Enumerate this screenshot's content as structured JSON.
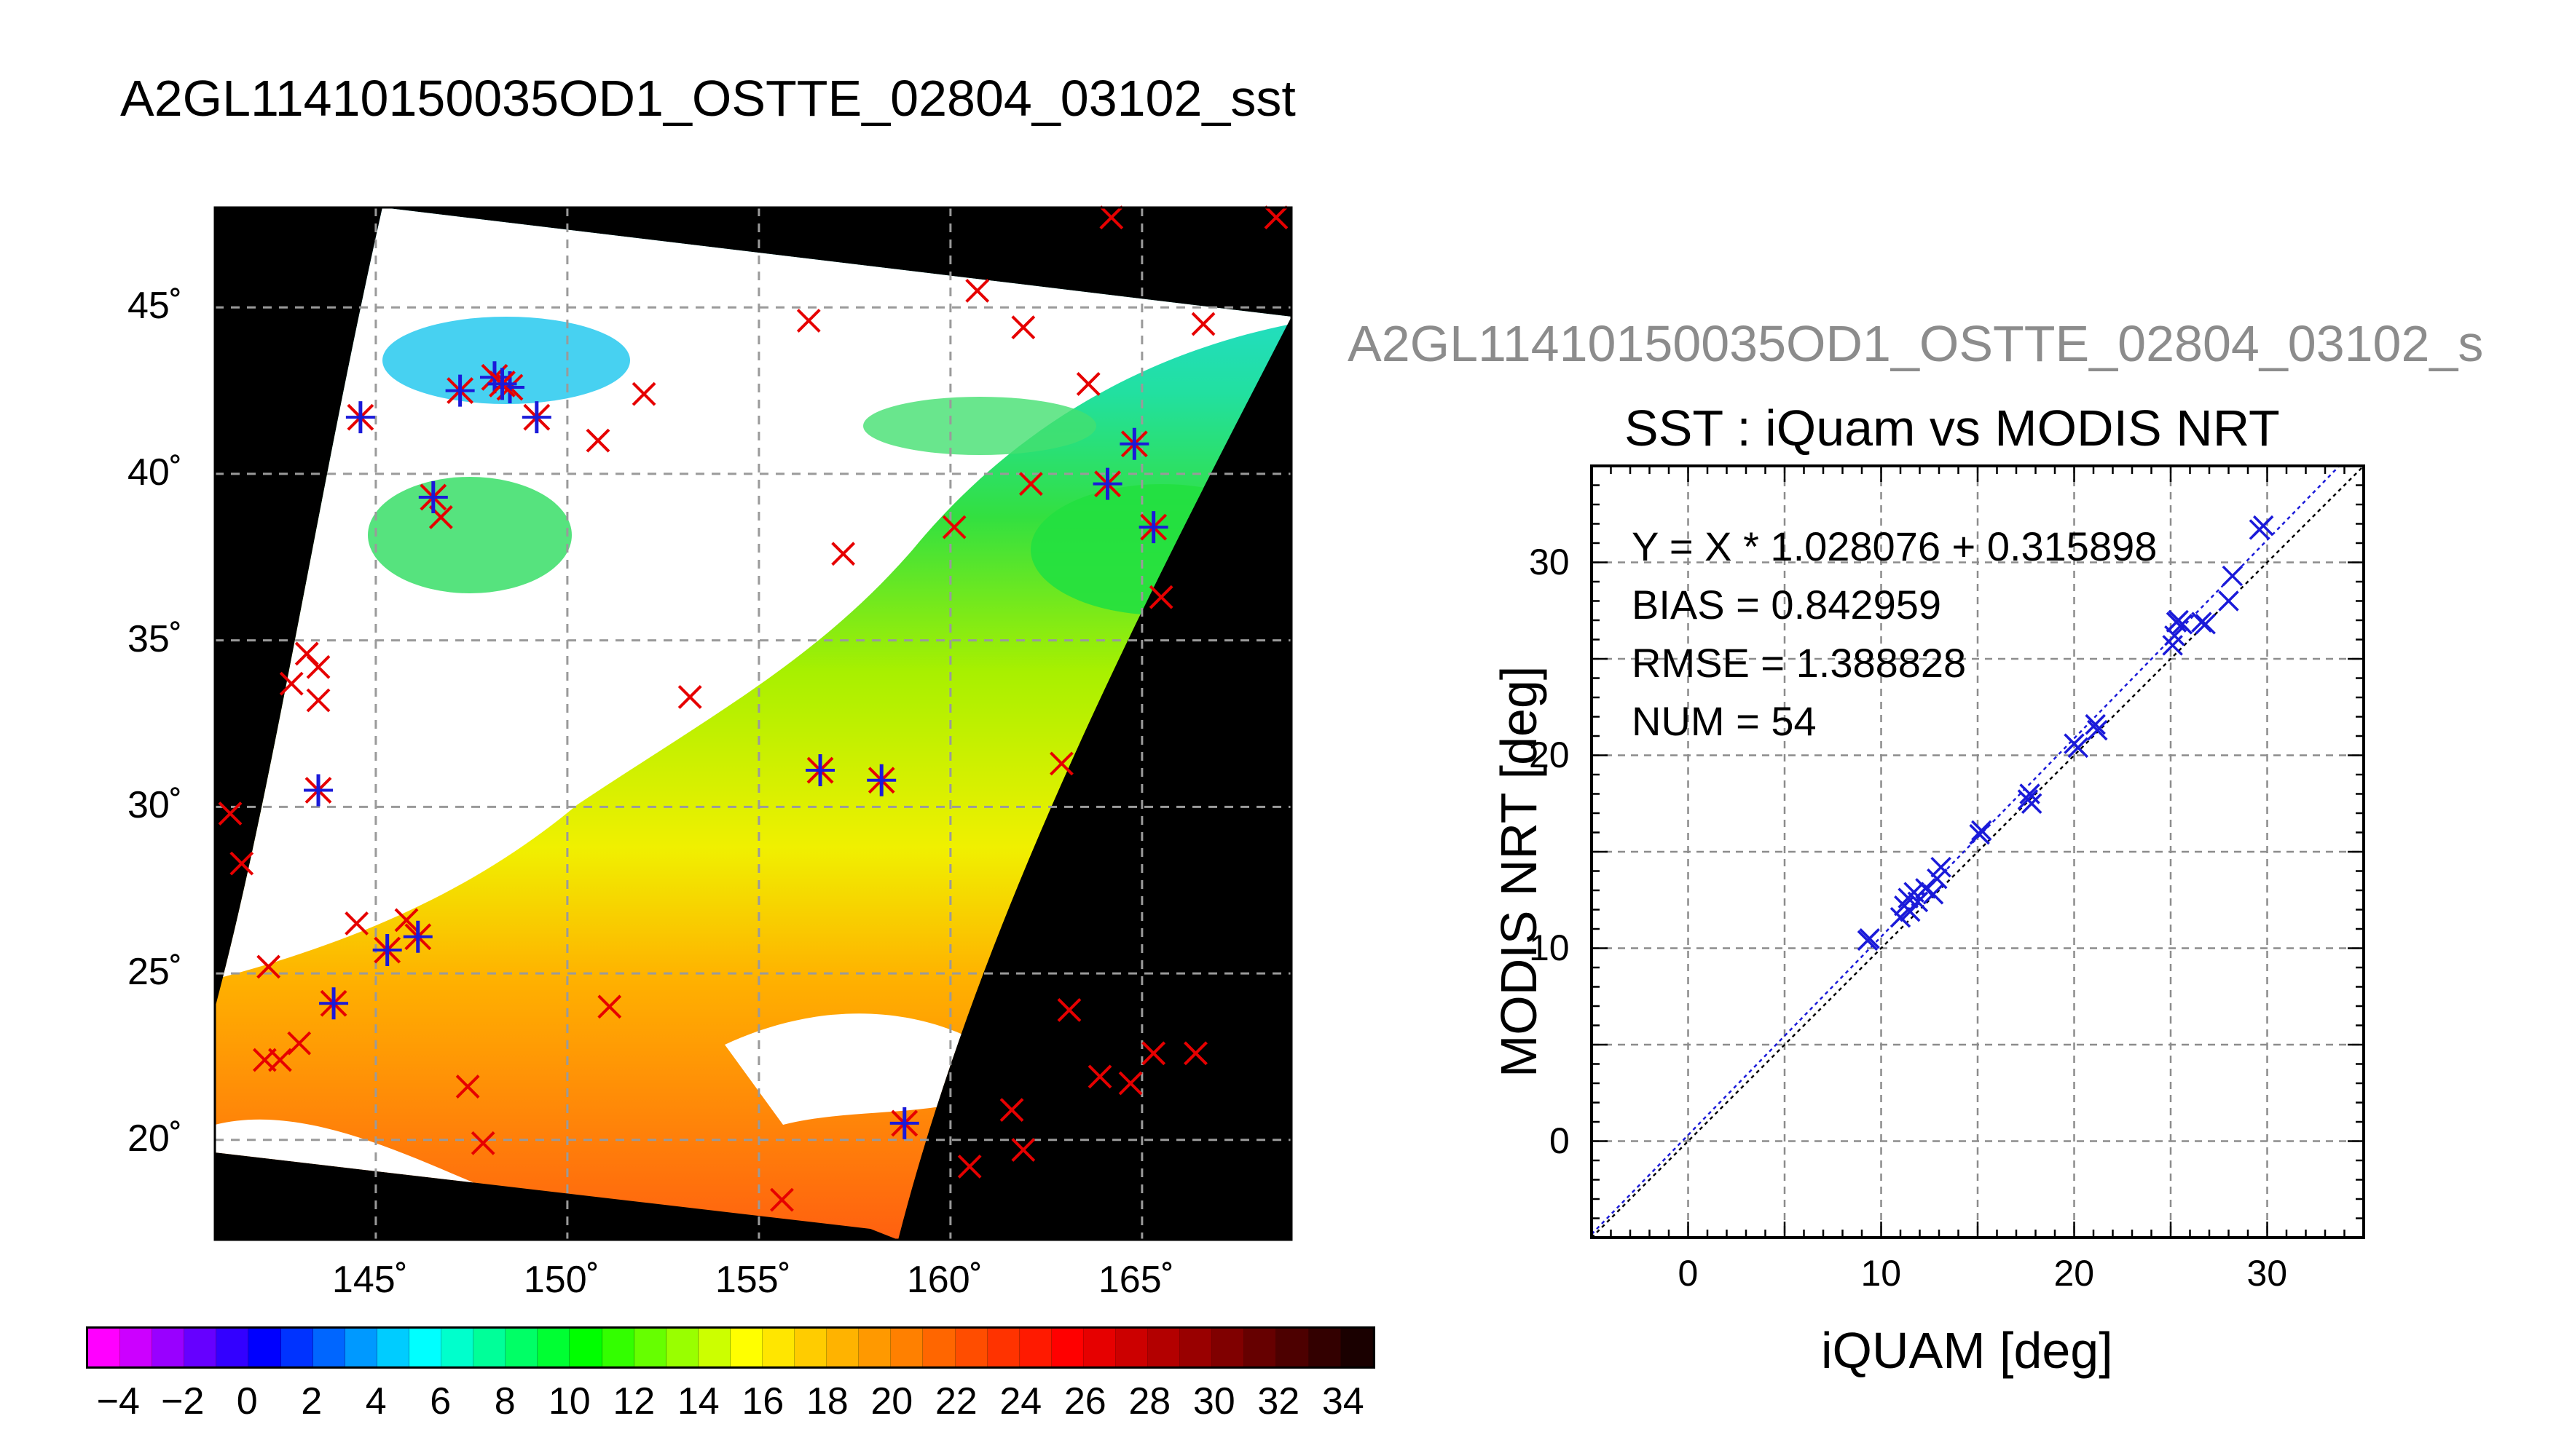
{
  "figure_title": "A2GL11410150035OD1_OSTTE_02804_03102_sst",
  "map": {
    "lon_ticks": [
      "145˚",
      "150˚",
      "155˚",
      "160˚",
      "165˚"
    ],
    "lon_tick_values": [
      145,
      150,
      155,
      160,
      165
    ],
    "lat_ticks": [
      "20˚",
      "25˚",
      "30˚",
      "35˚",
      "40˚",
      "45˚"
    ],
    "lat_tick_values": [
      20,
      25,
      30,
      35,
      40,
      45
    ],
    "lon_range": [
      140.8,
      168.9
    ],
    "lat_range": [
      17.0,
      48.0
    ],
    "land_color": "#000000",
    "cloud_color": "#ffffff",
    "iquam_marker_color": "#e60000",
    "match_marker_color": "#1a1ad9",
    "iquam_points": [
      [
        141.2,
        29.8
      ],
      [
        141.5,
        28.3
      ],
      [
        142.2,
        25.2
      ],
      [
        142.1,
        22.4
      ],
      [
        142.5,
        22.4
      ],
      [
        143.0,
        22.9
      ],
      [
        142.8,
        33.7
      ],
      [
        143.2,
        34.6
      ],
      [
        143.5,
        34.2
      ],
      [
        143.5,
        33.2
      ],
      [
        144.5,
        26.5
      ],
      [
        145.8,
        26.6
      ],
      [
        147.4,
        21.6
      ],
      [
        147.8,
        19.9
      ],
      [
        151.1,
        24.0
      ],
      [
        155.6,
        18.2
      ],
      [
        153.2,
        33.3
      ],
      [
        157.2,
        37.6
      ],
      [
        150.8,
        41.0
      ],
      [
        152.0,
        42.4
      ],
      [
        156.3,
        44.6
      ],
      [
        160.1,
        38.4
      ],
      [
        160.7,
        45.5
      ],
      [
        161.9,
        44.4
      ],
      [
        162.1,
        39.7
      ],
      [
        163.6,
        42.7
      ],
      [
        165.5,
        36.3
      ],
      [
        166.6,
        44.5
      ],
      [
        164.2,
        47.7
      ],
      [
        168.5,
        47.7
      ],
      [
        162.9,
        31.3
      ],
      [
        163.1,
        23.9
      ],
      [
        161.6,
        20.9
      ],
      [
        160.5,
        19.2
      ],
      [
        161.9,
        19.7
      ],
      [
        163.9,
        21.9
      ],
      [
        164.7,
        21.7
      ],
      [
        165.3,
        22.6
      ],
      [
        166.4,
        22.6
      ],
      [
        146.7,
        38.7
      ]
    ],
    "match_points": [
      [
        144.6,
        41.7
      ],
      [
        146.5,
        39.3
      ],
      [
        147.2,
        42.5
      ],
      [
        148.1,
        42.9
      ],
      [
        148.5,
        42.6
      ],
      [
        148.3,
        42.7
      ],
      [
        149.2,
        41.7
      ],
      [
        143.5,
        30.5
      ],
      [
        143.9,
        24.1
      ],
      [
        145.3,
        25.7
      ],
      [
        146.1,
        26.1
      ],
      [
        156.6,
        31.1
      ],
      [
        158.2,
        30.8
      ],
      [
        158.8,
        20.5
      ],
      [
        164.1,
        39.7
      ],
      [
        164.8,
        40.9
      ],
      [
        165.3,
        38.4
      ]
    ]
  },
  "colorbar": {
    "labels": [
      "−4",
      "−2",
      "0",
      "2",
      "4",
      "6",
      "8",
      "10",
      "12",
      "14",
      "16",
      "18",
      "20",
      "22",
      "24",
      "26",
      "28",
      "30",
      "32",
      "34"
    ],
    "label_values": [
      -4,
      -2,
      0,
      2,
      4,
      6,
      8,
      10,
      12,
      14,
      16,
      18,
      20,
      22,
      24,
      26,
      28,
      30,
      32,
      34
    ],
    "range": [
      -5,
      35
    ],
    "colors": [
      "#ff00ff",
      "#cc00ff",
      "#9900ff",
      "#6600ff",
      "#3300ff",
      "#0000ff",
      "#0033ff",
      "#0066ff",
      "#0099ff",
      "#00ccff",
      "#00ffff",
      "#00ffcc",
      "#00ff99",
      "#00ff66",
      "#00ff33",
      "#00ff00",
      "#33ff00",
      "#66ff00",
      "#99ff00",
      "#ccff00",
      "#ffff00",
      "#ffe600",
      "#ffcc00",
      "#ffb300",
      "#ff9900",
      "#ff8000",
      "#ff6600",
      "#ff4d00",
      "#ff3300",
      "#ff1a00",
      "#ff0000",
      "#e60000",
      "#cc0000",
      "#b30000",
      "#990000",
      "#800000",
      "#660000",
      "#4d0000",
      "#330000",
      "#1a0000"
    ]
  },
  "scatter_header": "A2GL11410150035OD1_OSTTE_02804_03102_s",
  "chart_data": {
    "type": "scatter",
    "title": "SST : iQuam vs MODIS NRT",
    "xlabel": "iQUAM [deg]",
    "ylabel": "MODIS NRT [deg]",
    "xlim": [
      -5,
      35
    ],
    "ylim": [
      -5,
      35
    ],
    "xticks": [
      0,
      10,
      20,
      30
    ],
    "yticks": [
      0,
      10,
      20,
      30
    ],
    "grid": true,
    "marker_color": "#1a1ad9",
    "fit": {
      "slope": 1.028076,
      "intercept": 0.315898
    },
    "stats": [
      "Y = X * 1.028076 + 0.315898",
      "BIAS = 0.842959",
      "RMSE = 1.388828",
      "NUM = 54"
    ],
    "points": [
      [
        9.3,
        10.4
      ],
      [
        9.4,
        10.5
      ],
      [
        11.0,
        11.6
      ],
      [
        11.2,
        12.2
      ],
      [
        11.4,
        12.6
      ],
      [
        11.5,
        11.9
      ],
      [
        11.7,
        12.9
      ],
      [
        11.9,
        12.4
      ],
      [
        12.3,
        13.1
      ],
      [
        12.7,
        12.8
      ],
      [
        12.9,
        13.6
      ],
      [
        13.1,
        14.2
      ],
      [
        15.1,
        15.9
      ],
      [
        15.2,
        16.1
      ],
      [
        17.6,
        17.7
      ],
      [
        17.7,
        18.0
      ],
      [
        17.8,
        17.5
      ],
      [
        20.0,
        20.6
      ],
      [
        20.2,
        20.4
      ],
      [
        21.1,
        21.6
      ],
      [
        21.2,
        21.3
      ],
      [
        25.1,
        25.7
      ],
      [
        25.2,
        26.2
      ],
      [
        25.3,
        26.9
      ],
      [
        25.4,
        27.0
      ],
      [
        25.6,
        26.8
      ],
      [
        26.6,
        26.9
      ],
      [
        26.8,
        26.8
      ],
      [
        28.0,
        28.0
      ],
      [
        28.2,
        29.3
      ],
      [
        29.6,
        31.7
      ],
      [
        29.8,
        31.9
      ]
    ]
  }
}
